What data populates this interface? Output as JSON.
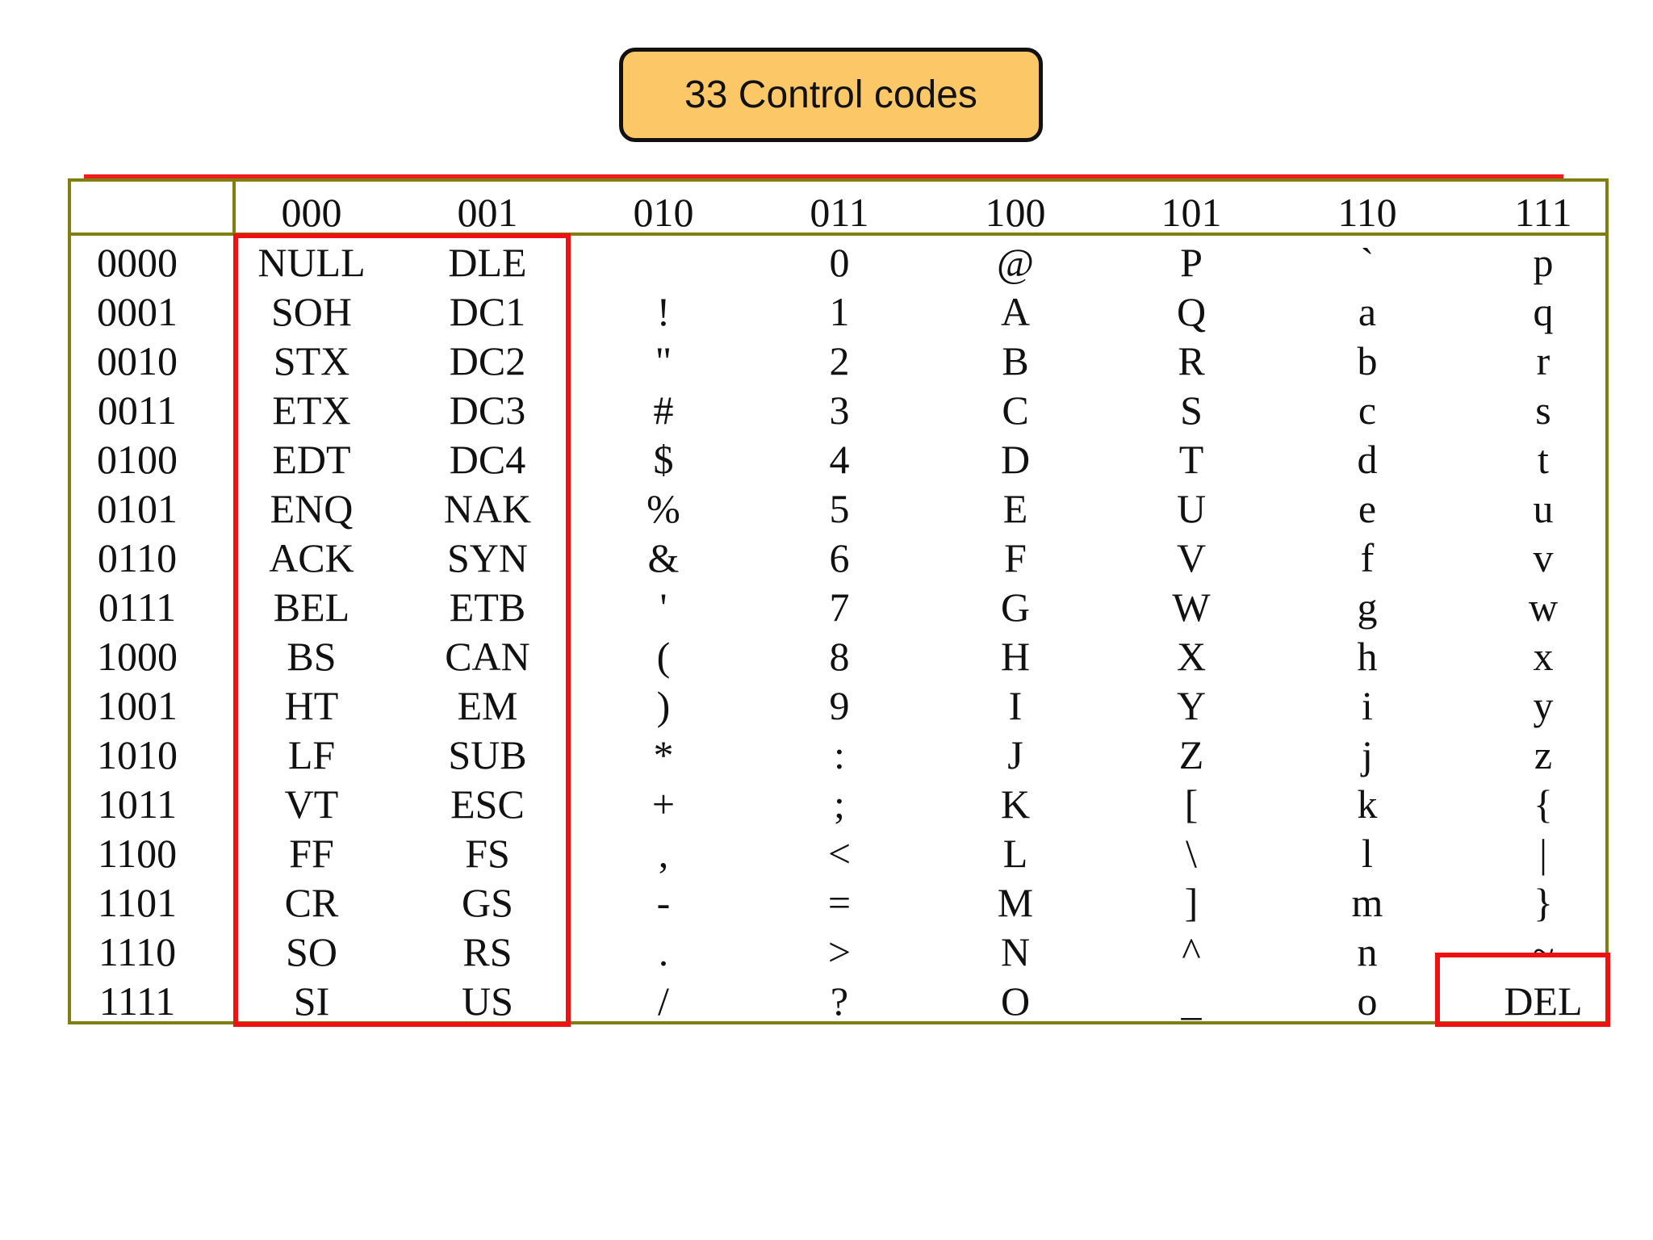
{
  "callout": {
    "label": "33 Control codes"
  },
  "colors": {
    "callout_fill": "#fcc867",
    "frame": "#7f7f10",
    "highlight": "#ee1111"
  },
  "table": {
    "column_headers": [
      "000",
      "001",
      "010",
      "011",
      "100",
      "101",
      "110",
      "111"
    ],
    "row_headers": [
      "0000",
      "0001",
      "0010",
      "0011",
      "0100",
      "0101",
      "0110",
      "0111",
      "1000",
      "1001",
      "1010",
      "1011",
      "1100",
      "1101",
      "1110",
      "1111"
    ],
    "columns": [
      [
        "NULL",
        "SOH",
        "STX",
        "ETX",
        "EDT",
        "ENQ",
        "ACK",
        "BEL",
        "BS",
        "HT",
        "LF",
        "VT",
        "FF",
        "CR",
        "SO",
        "SI"
      ],
      [
        "DLE",
        "DC1",
        "DC2",
        "DC3",
        "DC4",
        "NAK",
        "SYN",
        "ETB",
        "CAN",
        "EM",
        "SUB",
        "ESC",
        "FS",
        "GS",
        "RS",
        "US"
      ],
      [
        "",
        "!",
        "\"",
        "#",
        "$",
        "%",
        "&",
        "'",
        "(",
        ")",
        "*",
        "+",
        ",",
        "-",
        ".",
        "/"
      ],
      [
        "0",
        "1",
        "2",
        "3",
        "4",
        "5",
        "6",
        "7",
        "8",
        "9",
        ":",
        ";",
        "<",
        "=",
        ">",
        "?"
      ],
      [
        "@",
        "A",
        "B",
        "C",
        "D",
        "E",
        "F",
        "G",
        "H",
        "I",
        "J",
        "K",
        "L",
        "M",
        "N",
        "O"
      ],
      [
        "P",
        "Q",
        "R",
        "S",
        "T",
        "U",
        "V",
        "W",
        "X",
        "Y",
        "Z",
        "[",
        "\\",
        "]",
        "^",
        "_"
      ],
      [
        "`",
        "a",
        "b",
        "c",
        "d",
        "e",
        "f",
        "g",
        "h",
        "i",
        "j",
        "k",
        "l",
        "m",
        "n",
        "o"
      ],
      [
        "p",
        "q",
        "r",
        "s",
        "t",
        "u",
        "v",
        "w",
        "x",
        "y",
        "z",
        "{",
        "|",
        "}",
        "~",
        "DEL"
      ]
    ]
  }
}
